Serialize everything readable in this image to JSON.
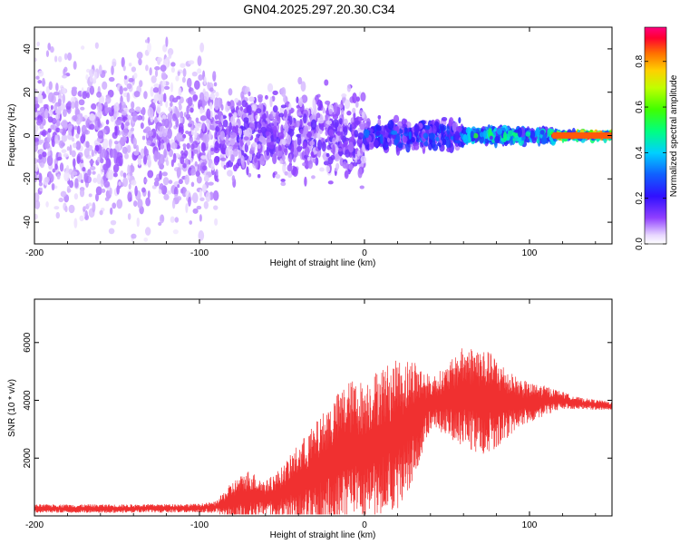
{
  "title": "GN04.2025.297.20.30.C34",
  "chart_data": [
    {
      "type": "heatmap",
      "name": "spectrogram",
      "xlabel": "Height of straight line (km)",
      "ylabel": "Frequency (Hz)",
      "xlim": [
        -200,
        150
      ],
      "ylim": [
        -50,
        50
      ],
      "xticks": [
        -200,
        -100,
        0,
        100
      ],
      "yticks": [
        -40,
        -20,
        0,
        20,
        40
      ],
      "colorbar": {
        "label": "Normalized spectral amplitude",
        "range": [
          0,
          0.95
        ],
        "ticks": [
          0.0,
          0.2,
          0.4,
          0.6,
          0.8
        ],
        "tick_labels": [
          "0.0",
          "0.2",
          "0.4",
          "0.6",
          "0.8"
        ]
      },
      "features": [
        {
          "x_range": [
            -200,
            -90
          ],
          "freq_spread": 50,
          "amplitude": 0.1,
          "description": "broadband low-level noise"
        },
        {
          "x_range": [
            -90,
            0
          ],
          "freq_spread": 25,
          "amplitude": 0.15
        },
        {
          "x_range": [
            0,
            60
          ],
          "freq_spread": 8,
          "amplitude": 0.3
        },
        {
          "x_range": [
            60,
            115
          ],
          "freq_spread": 4,
          "amplitude": 0.5
        },
        {
          "x_range": [
            115,
            150
          ],
          "freq_spread": 1.5,
          "amplitude": 0.85,
          "description": "strong narrow line near 0 Hz"
        }
      ]
    },
    {
      "type": "line",
      "name": "snr",
      "xlabel": "Height of straight line (km)",
      "ylabel": "SNR (10 * v/v)",
      "xlim": [
        -200,
        150
      ],
      "ylim": [
        0,
        7500
      ],
      "xticks": [
        -200,
        -100,
        0,
        100
      ],
      "yticks": [
        2000,
        4000,
        6000
      ],
      "color": "#f03030",
      "envelope": {
        "x": [
          -200,
          -150,
          -100,
          -90,
          -80,
          -70,
          -60,
          -50,
          -40,
          -30,
          -20,
          -10,
          0,
          10,
          20,
          30,
          40,
          50,
          60,
          70,
          80,
          90,
          100,
          110,
          120,
          130,
          150
        ],
        "center": [
          250,
          250,
          270,
          300,
          500,
          700,
          600,
          800,
          1100,
          1400,
          1800,
          2300,
          2300,
          2600,
          2800,
          3300,
          3900,
          4000,
          4100,
          4000,
          3900,
          3900,
          3900,
          4000,
          4000,
          3900,
          3800
        ],
        "spread": [
          150,
          150,
          150,
          200,
          700,
          900,
          600,
          900,
          1400,
          1800,
          2200,
          2400,
          2400,
          2600,
          2600,
          2200,
          900,
          1200,
          1800,
          1900,
          1600,
          1000,
          700,
          500,
          300,
          200,
          150
        ]
      }
    }
  ]
}
